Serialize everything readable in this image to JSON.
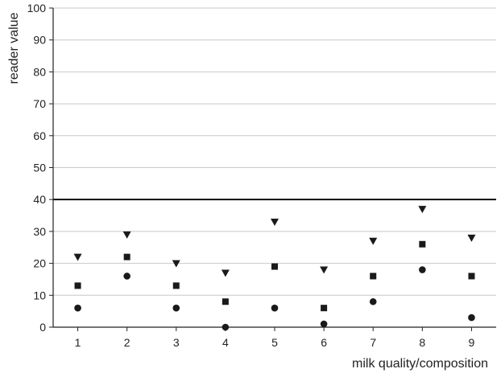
{
  "chart_data": {
    "type": "scatter",
    "title": "",
    "xlabel": "milk quality/composition",
    "ylabel": "reader value",
    "x": [
      1,
      2,
      3,
      4,
      5,
      6,
      7,
      8,
      9
    ],
    "xlim": [
      0.5,
      9.5
    ],
    "ylim": [
      0,
      100
    ],
    "xticks": [
      "1",
      "2",
      "3",
      "4",
      "5",
      "6",
      "7",
      "8",
      "9"
    ],
    "yticks": [
      "0",
      "10",
      "20",
      "30",
      "40",
      "50",
      "60",
      "70",
      "80",
      "90",
      "100"
    ],
    "grid": "horizontal",
    "reference_line": 40,
    "series": [
      {
        "marker": "triangle-down",
        "values": [
          22,
          29,
          20,
          17,
          33,
          18,
          27,
          37,
          28
        ]
      },
      {
        "marker": "square",
        "values": [
          13,
          22,
          13,
          8,
          19,
          6,
          16,
          26,
          16
        ]
      },
      {
        "marker": "circle",
        "values": [
          6,
          16,
          6,
          0,
          6,
          1,
          8,
          18,
          3
        ]
      }
    ],
    "colors": {
      "marker": "#1a1a1a",
      "grid": "#c8c8c8",
      "axis": "#222222",
      "reference": "#000000"
    }
  }
}
